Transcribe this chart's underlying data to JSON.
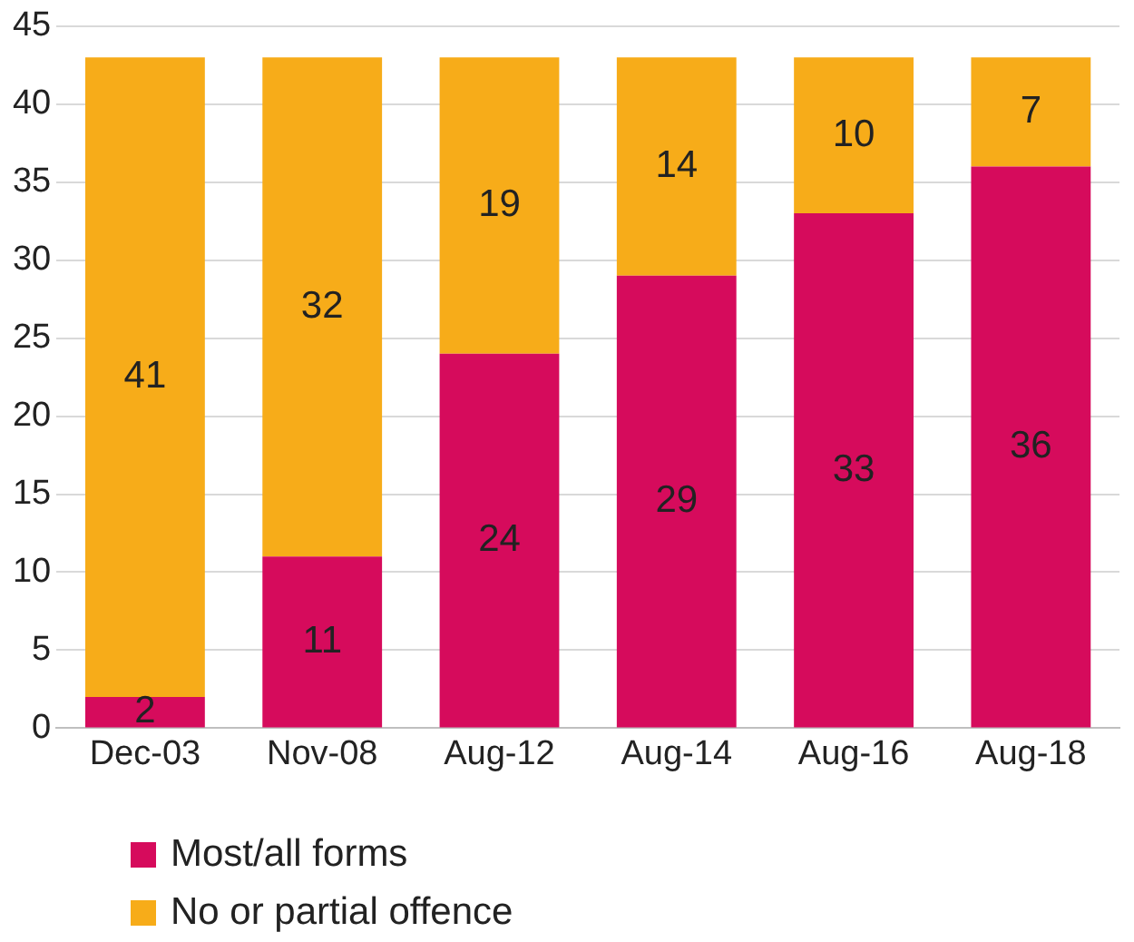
{
  "chart_data": {
    "type": "bar",
    "stacked": true,
    "categories": [
      "Dec-03",
      "Nov-08",
      "Aug-12",
      "Aug-14",
      "Aug-16",
      "Aug-18"
    ],
    "series": [
      {
        "name": "Most/all forms",
        "color": "#d60b5c",
        "values": [
          2,
          11,
          24,
          29,
          33,
          36
        ]
      },
      {
        "name": "No or partial offence",
        "color": "#f7ac19",
        "values": [
          41,
          32,
          19,
          14,
          10,
          7
        ]
      }
    ],
    "ylim": [
      0,
      45
    ],
    "yticks": [
      0,
      5,
      10,
      15,
      20,
      25,
      30,
      35,
      40,
      45
    ],
    "grid": "y",
    "legend": "bottom",
    "data_labels": true
  }
}
